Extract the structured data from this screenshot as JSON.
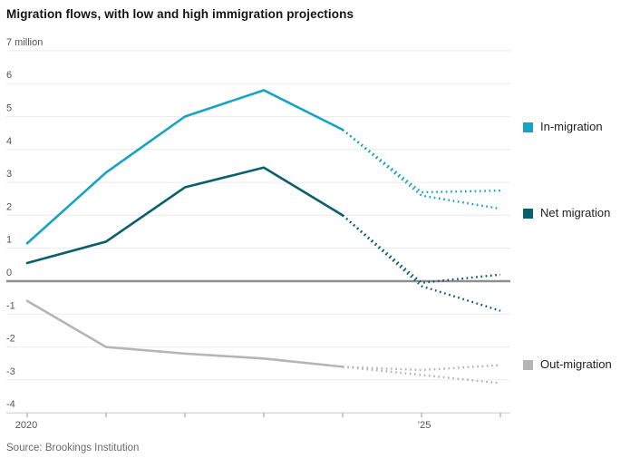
{
  "header": {
    "title": "Migration flows, with low and high immigration projections"
  },
  "footer": {
    "source": "Source: Brookings Institution"
  },
  "legend": {
    "items": [
      {
        "label": "In-migration",
        "color": "#15a4c2"
      },
      {
        "label": "Net migration",
        "color": "#0a5f6e"
      },
      {
        "label": "Out-migration",
        "color": "#b5b5b5"
      }
    ]
  },
  "chart_data": {
    "type": "line",
    "title": "Migration flows, with low and high immigration projections",
    "unit_label": "million",
    "x": [
      2020,
      2021,
      2022,
      2023,
      2024,
      2025,
      2026
    ],
    "x_tick_labels": [
      "2020",
      "",
      "",
      "",
      "",
      "’25",
      ""
    ],
    "ylim": [
      -4,
      7
    ],
    "yticks": [
      7,
      6,
      5,
      4,
      3,
      2,
      1,
      0,
      -1,
      -2,
      -3,
      -4
    ],
    "ytick_labels": [
      "7 million",
      "6",
      "5",
      "4",
      "3",
      "2",
      "1",
      "0",
      "-1",
      "-2",
      "-3",
      "-4"
    ],
    "grid": "horizontal",
    "zero_line_color": "#8f8f8f",
    "gridline_color": "#ececec",
    "axis_line_color": "#cccccc",
    "legend_position": "right",
    "projection_note": "dotted segments after 2024 are low and high immigration projections",
    "series": [
      {
        "name": "In-migration",
        "color": "#15a4c2",
        "actual": {
          "years": [
            2020,
            2021,
            2022,
            2023,
            2024
          ],
          "values": [
            1.15,
            3.3,
            5.0,
            5.8,
            4.6
          ]
        },
        "projection_high": {
          "years": [
            2024,
            2025,
            2026
          ],
          "values": [
            4.6,
            2.7,
            2.75
          ]
        },
        "projection_low": {
          "years": [
            2024,
            2025,
            2026
          ],
          "values": [
            4.6,
            2.6,
            2.2
          ]
        }
      },
      {
        "name": "Net migration",
        "color": "#0a5f6e",
        "actual": {
          "years": [
            2020,
            2021,
            2022,
            2023,
            2024
          ],
          "values": [
            0.55,
            1.2,
            2.85,
            3.45,
            2.0
          ]
        },
        "projection_high": {
          "years": [
            2024,
            2025,
            2026
          ],
          "values": [
            2.0,
            -0.05,
            0.2
          ]
        },
        "projection_low": {
          "years": [
            2024,
            2025,
            2026
          ],
          "values": [
            2.0,
            -0.15,
            -0.9
          ]
        }
      },
      {
        "name": "Out-migration",
        "color": "#b5b5b5",
        "actual": {
          "years": [
            2020,
            2021,
            2022,
            2023,
            2024
          ],
          "values": [
            -0.6,
            -2.0,
            -2.2,
            -2.35,
            -2.6
          ]
        },
        "projection_high": {
          "years": [
            2024,
            2025,
            2026
          ],
          "values": [
            -2.6,
            -2.7,
            -2.55
          ]
        },
        "projection_low": {
          "years": [
            2024,
            2025,
            2026
          ],
          "values": [
            -2.6,
            -2.85,
            -3.1
          ]
        }
      }
    ]
  }
}
